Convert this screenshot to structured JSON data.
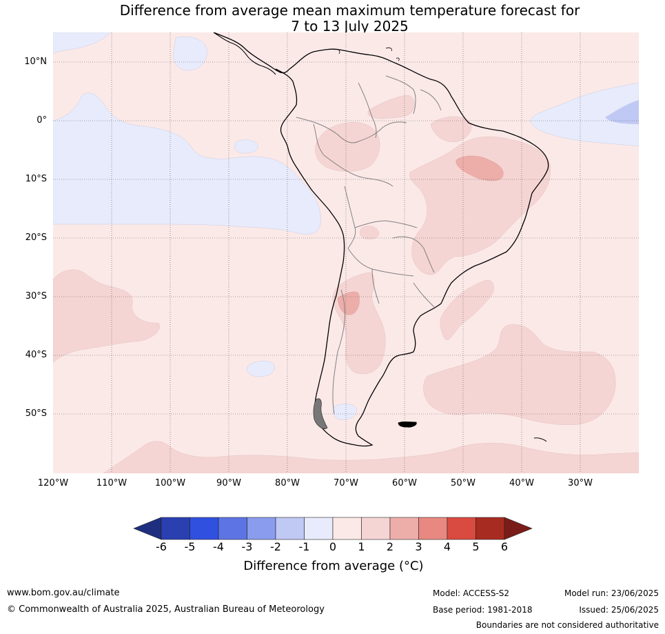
{
  "title_line1": "Difference from average mean maximum temperature forecast for",
  "title_line2": "7 to 13 July 2025",
  "lat_labels": [
    "10°N",
    "0°",
    "10°S",
    "20°S",
    "30°S",
    "40°S",
    "50°S"
  ],
  "lon_labels": [
    "120°W",
    "110°W",
    "100°W",
    "90°W",
    "80°W",
    "70°W",
    "60°W",
    "50°W",
    "40°W",
    "30°W"
  ],
  "colorbar": {
    "ticks": [
      "-6",
      "-5",
      "-4",
      "-3",
      "-2",
      "-1",
      "0",
      "1",
      "2",
      "3",
      "4",
      "5",
      "6"
    ],
    "colors": [
      "#1f2f80",
      "#2a3fb0",
      "#3050e0",
      "#5c74e4",
      "#8a9cee",
      "#c0c8f4",
      "#e8ebfb",
      "#fbe9e8",
      "#f5d5d3",
      "#edaeaa",
      "#e88880",
      "#d94a40",
      "#a82b21",
      "#7a1d18"
    ],
    "title": "Difference from average (°C)"
  },
  "footer": {
    "website": "www.bom.gov.au/climate",
    "copyright": "© Commonwealth of Australia 2025, Australian Bureau of Meteorology",
    "model": "Model: ACCESS-S2",
    "base_period": "Base period: 1981-2018",
    "model_run": "Model run: 23/06/2025",
    "issued": "Issued: 25/06/2025",
    "disclaimer": "Boundaries are not considered authoritative"
  }
}
